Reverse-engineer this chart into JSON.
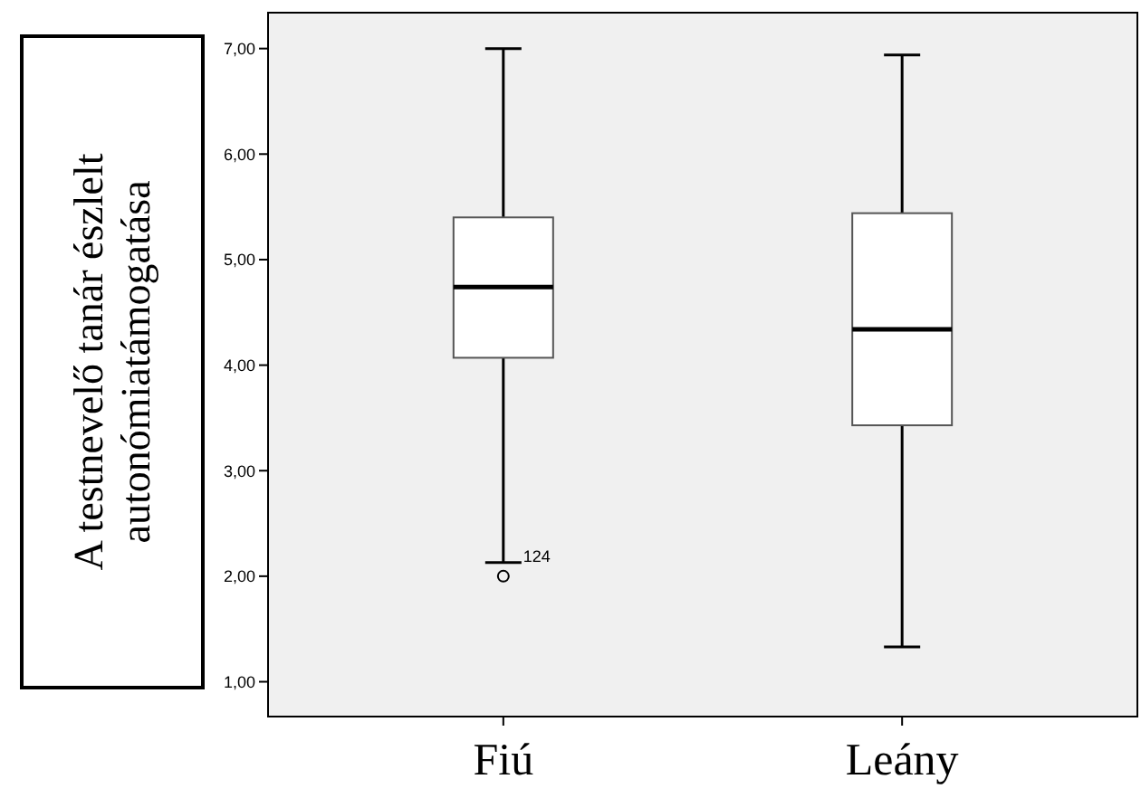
{
  "chart_data": {
    "type": "box",
    "ylabel": "A testnevelő tanár észlelt autonómiatámogatása",
    "categories": [
      "Fiú",
      "Leány"
    ],
    "boxes": [
      {
        "low": 2.13,
        "q1": 4.07,
        "median": 4.74,
        "q3": 5.4,
        "high": 7.0,
        "outliers": [
          2.0
        ]
      },
      {
        "low": 1.33,
        "q1": 3.43,
        "median": 4.34,
        "q3": 5.44,
        "high": 6.94
      }
    ],
    "ylim": [
      0.67,
      7.34
    ],
    "yticks": [
      {
        "value": 1,
        "label": "1,00"
      },
      {
        "value": 2,
        "label": "2,00"
      },
      {
        "value": 3,
        "label": "3,00"
      },
      {
        "value": 4,
        "label": "4,00"
      },
      {
        "value": 5,
        "label": "5,00"
      },
      {
        "value": 6,
        "label": "6,00"
      },
      {
        "value": 7,
        "label": "7,00"
      }
    ],
    "annotations": [
      "124"
    ],
    "grid": false
  }
}
